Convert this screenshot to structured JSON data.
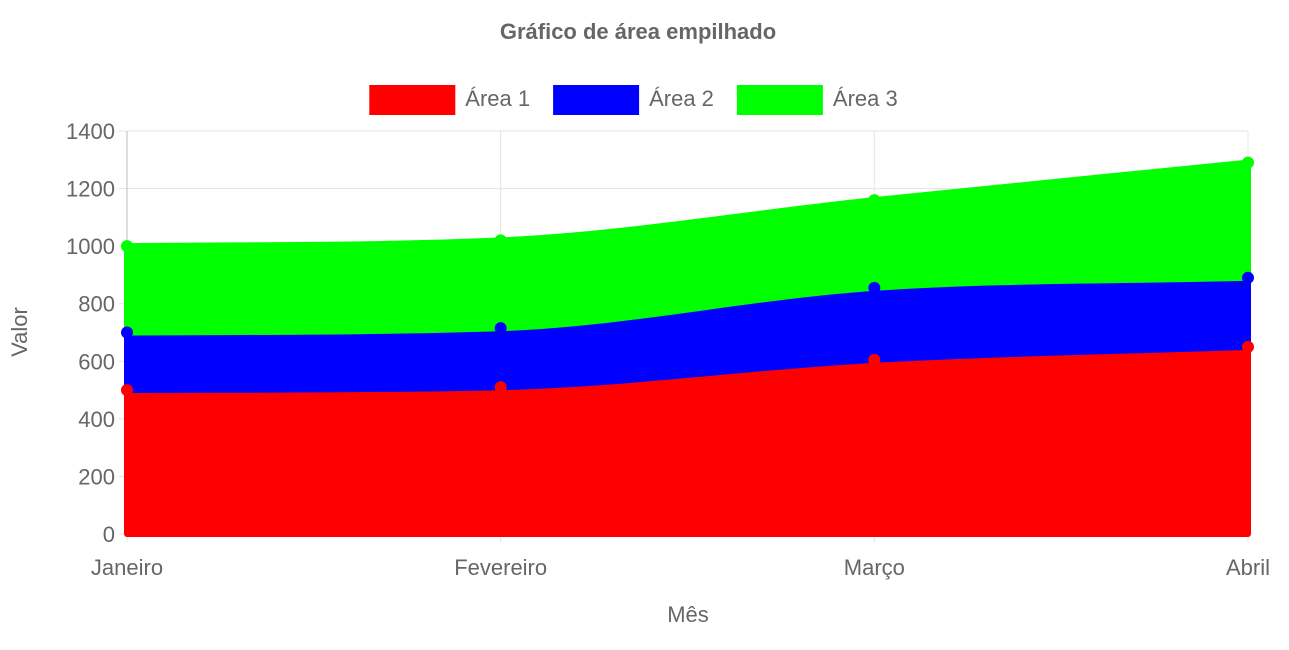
{
  "chart_data": {
    "type": "area",
    "stacked": true,
    "title": "Gráfico de área empilhado",
    "xlabel": "Mês",
    "ylabel": "Valor",
    "categories": [
      "Janeiro",
      "Fevereiro",
      "Março",
      "Abril"
    ],
    "ylim": [
      0,
      1400
    ],
    "yticks": [
      0,
      200,
      400,
      600,
      800,
      1000,
      1200,
      1400
    ],
    "grid": true,
    "legend_position": "top",
    "series": [
      {
        "name": "Área 1",
        "color": "#ff0000",
        "values": [
          500,
          510,
          605,
          650
        ]
      },
      {
        "name": "Área 2",
        "color": "#0000ff",
        "values": [
          200,
          205,
          250,
          240
        ]
      },
      {
        "name": "Área 3",
        "color": "#00ff00",
        "values": [
          300,
          305,
          305,
          400
        ]
      }
    ]
  }
}
